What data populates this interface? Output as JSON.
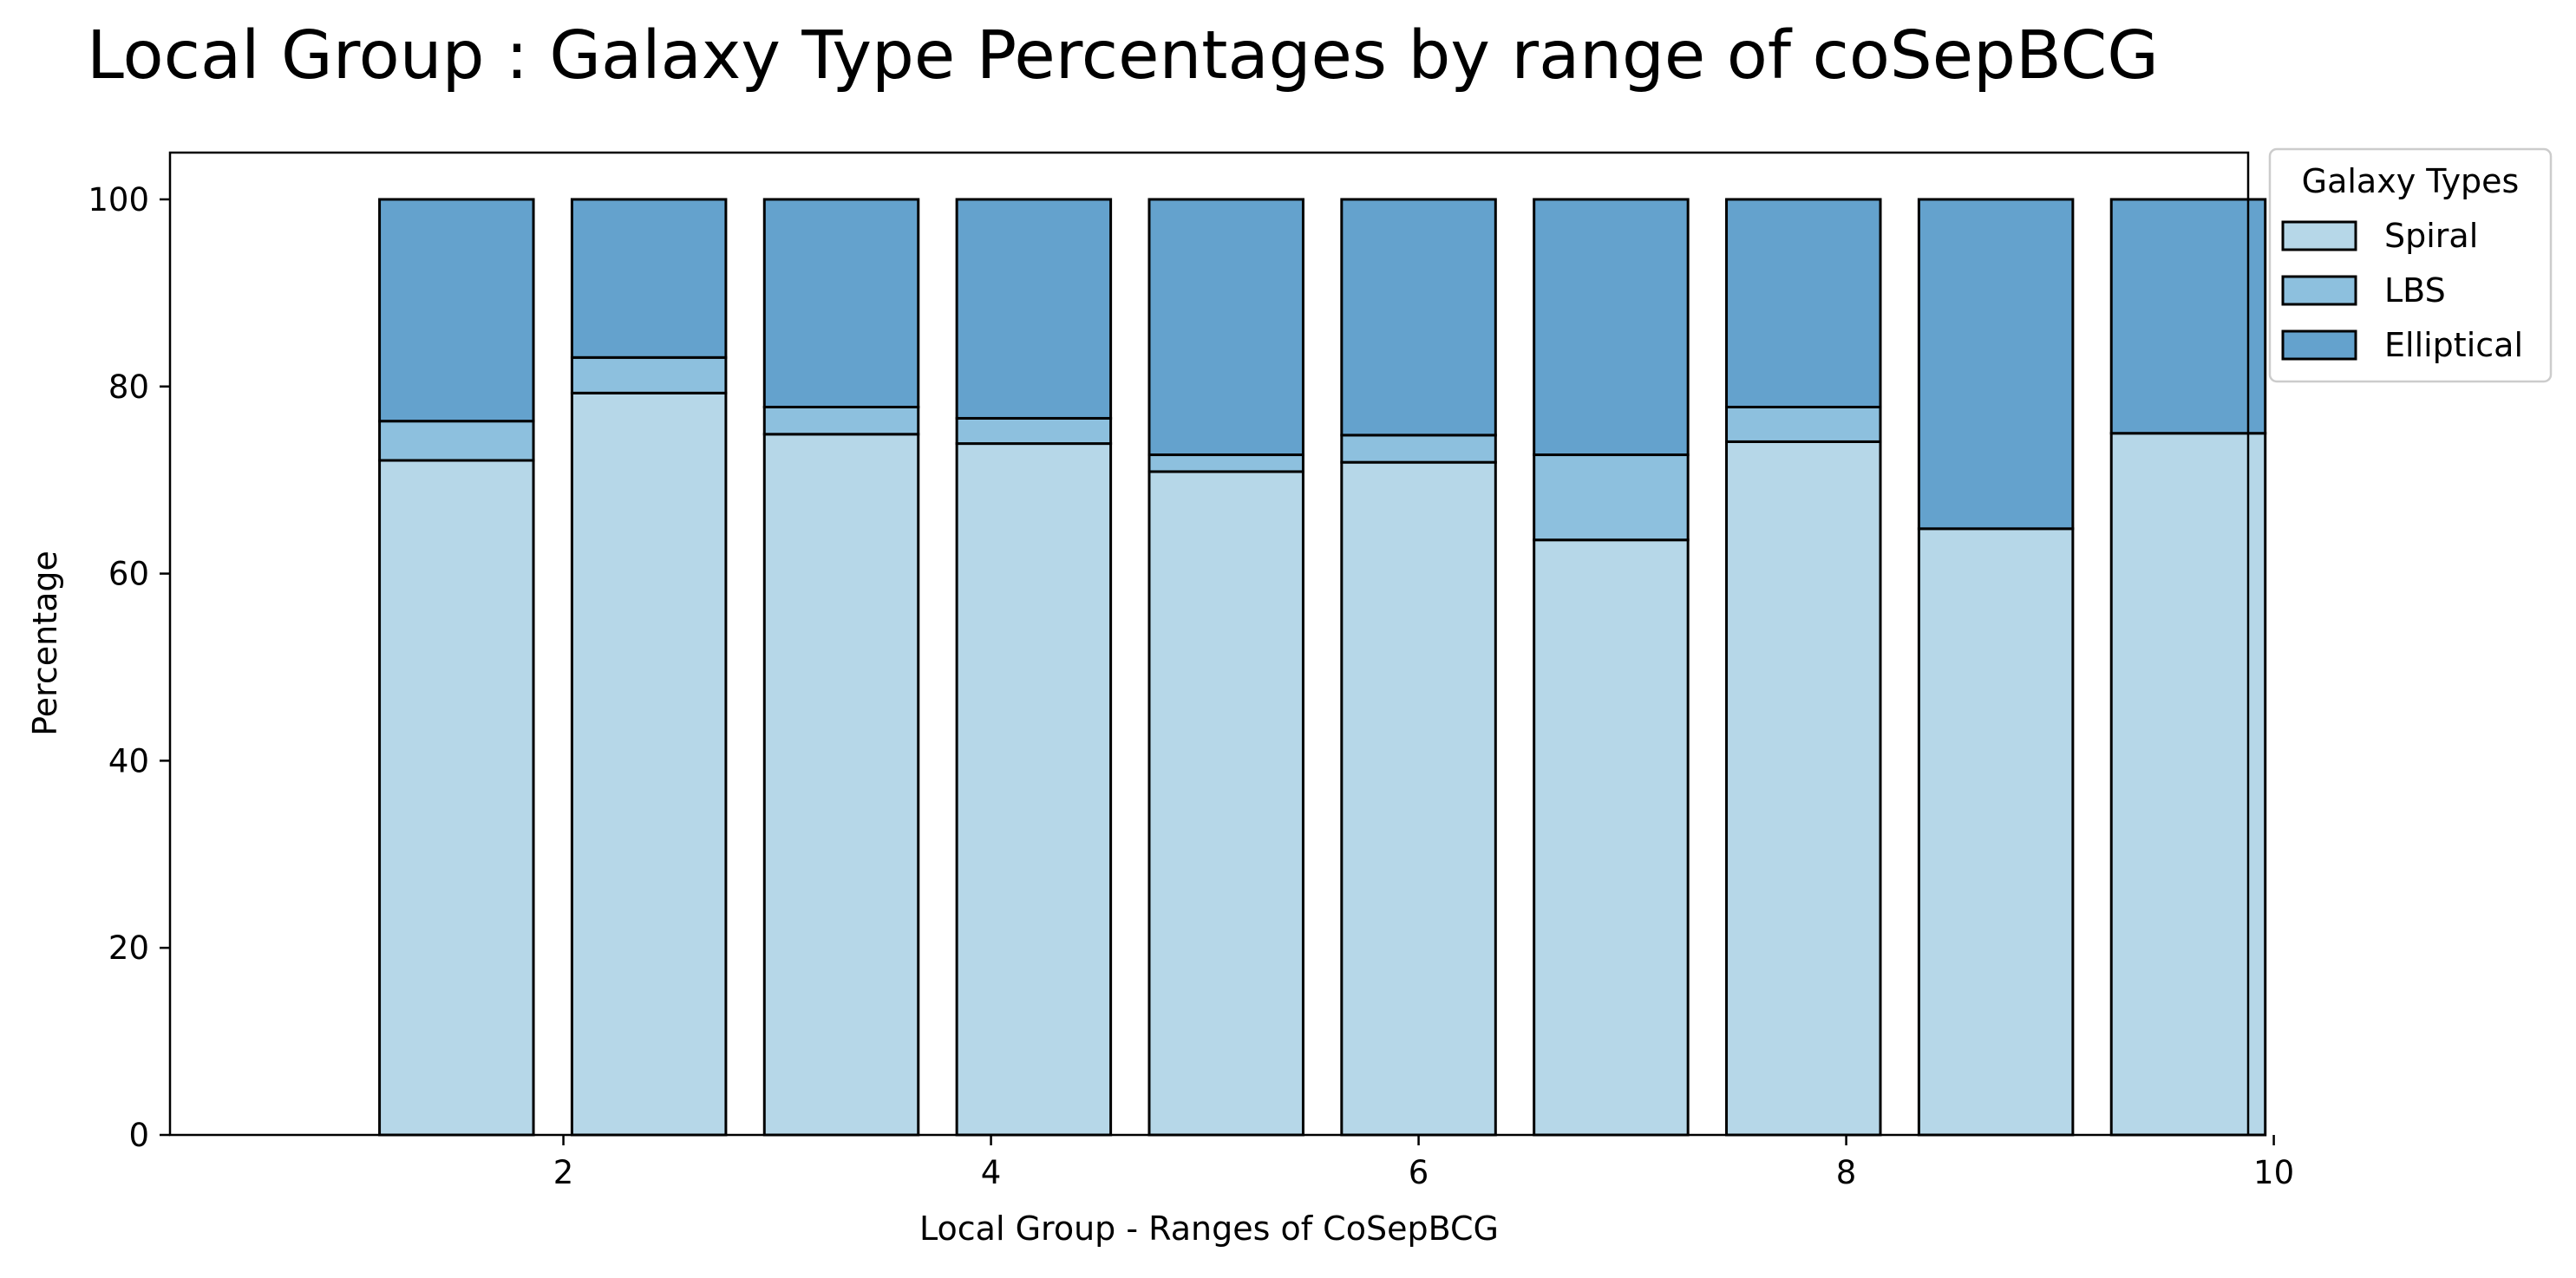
{
  "chart_data": {
    "type": "bar",
    "stacked": true,
    "title": "Local Group : Galaxy Type Percentages by range of coSepBCG",
    "xlabel": "Local Group - Ranges of CoSepBCG",
    "ylabel": "Percentage",
    "x": [
      1.5,
      2.4,
      3.3,
      4.2,
      5.1,
      6.0,
      6.9,
      7.8,
      8.7,
      9.6
    ],
    "bar_width": 0.72,
    "xlim": [
      0.16,
      9.88
    ],
    "ylim": [
      0,
      105
    ],
    "xticks": [
      2,
      4,
      6,
      8,
      10
    ],
    "yticks": [
      0,
      20,
      40,
      60,
      80,
      100
    ],
    "grid": false,
    "legend": {
      "title": "Galaxy Types",
      "placement": "outside upper-right"
    },
    "series": [
      {
        "name": "Spiral",
        "color": "#b6d7e8",
        "values": [
          72.1,
          79.3,
          74.9,
          73.9,
          70.9,
          71.9,
          63.6,
          74.1,
          64.8,
          75.0
        ]
      },
      {
        "name": "LBS",
        "color": "#8dc0de",
        "values": [
          4.2,
          3.8,
          2.9,
          2.7,
          1.8,
          2.9,
          9.1,
          3.7,
          0.0,
          0.0
        ]
      },
      {
        "name": "Elliptical",
        "color": "#64a2cd",
        "values": [
          23.7,
          16.9,
          22.2,
          23.4,
          27.3,
          25.2,
          27.3,
          22.2,
          35.2,
          25.0
        ]
      }
    ]
  }
}
